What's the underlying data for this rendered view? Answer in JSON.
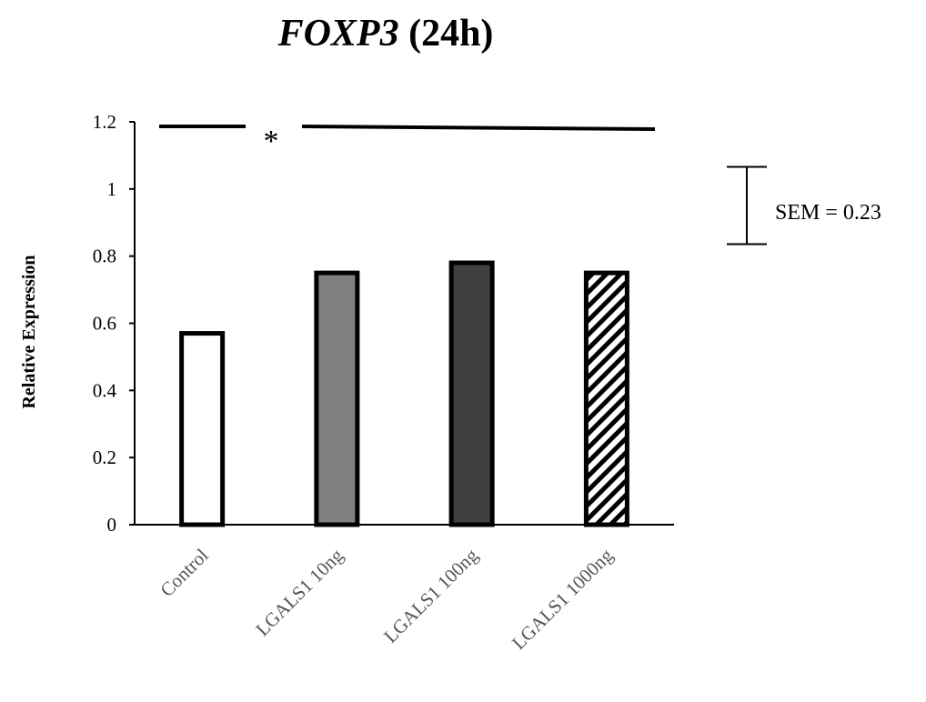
{
  "chart_data": {
    "type": "bar",
    "title_italic": "FOXP3",
    "title_rest": " (24h)",
    "xlabel": "",
    "ylabel": "Relative Expression",
    "ylim": [
      0,
      1.2
    ],
    "yticks": [
      "0",
      "0.2",
      "0.4",
      "0.6",
      "0.8",
      "1",
      "1.2"
    ],
    "categories": [
      "Control",
      "LGALS1 10ng",
      "LGALS1 100ng",
      "LGALS1 1000ng"
    ],
    "values": [
      0.57,
      0.75,
      0.78,
      0.75
    ],
    "bar_fills": [
      "#ffffff",
      "#808080",
      "#404040",
      "hatch"
    ],
    "significance_marker": "*",
    "sem_label": "SEM = 0.23",
    "sem_value": 0.23,
    "grid": false,
    "legend": "none"
  }
}
